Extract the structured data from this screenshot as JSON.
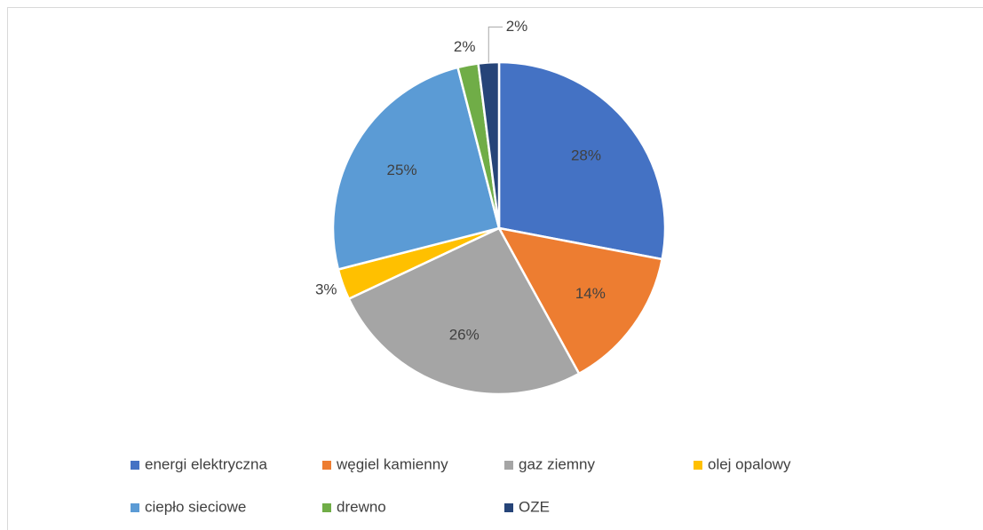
{
  "chart_data": {
    "type": "pie",
    "categories": [
      "energi elektryczna",
      "węgiel kamienny",
      "gaz ziemny",
      "olej opalowy",
      "ciepło sieciowe",
      "drewno",
      "OZE"
    ],
    "values": [
      28,
      14,
      26,
      3,
      25,
      2,
      2
    ],
    "value_labels": [
      "28%",
      "14%",
      "26%",
      "3%",
      "25%",
      "2%",
      "2%"
    ],
    "colors": [
      "#4472c4",
      "#ed7d31",
      "#a5a5a5",
      "#ffc000",
      "#5b9bd5",
      "#70ad47",
      "#264478"
    ],
    "legend": "bottom"
  }
}
